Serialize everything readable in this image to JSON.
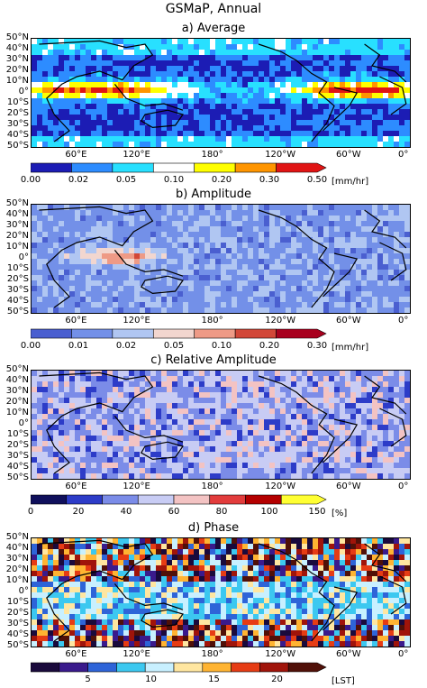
{
  "figure_title": "GSMaP, Annual",
  "lat_labels": [
    "50°N",
    "40°N",
    "30°N",
    "20°N",
    "10°N",
    "0°",
    "10°S",
    "20°S",
    "30°S",
    "40°S",
    "50°S"
  ],
  "lon_labels": [
    "60°E",
    "120°E",
    "180°",
    "120°W",
    "60°W",
    "0°"
  ],
  "panels": [
    {
      "title": "a) Average",
      "unit": "[mm/hr]",
      "ticks": [
        "0.00",
        "0.02",
        "0.05",
        "0.10",
        "0.20",
        "0.30",
        "0.50"
      ],
      "colors": [
        "#1c1cb4",
        "#2d8cff",
        "#28e0ff",
        "#ffffff",
        "#ffff00",
        "#ff9500",
        "#e01414"
      ]
    },
    {
      "title": "b) Amplitude",
      "unit": "[mm/hr]",
      "ticks": [
        "0.00",
        "0.01",
        "0.02",
        "0.05",
        "0.10",
        "0.20",
        "0.30"
      ],
      "colors": [
        "#4a5fd0",
        "#7390e8",
        "#b0c6f2",
        "#f2d6cf",
        "#ee9a86",
        "#d24738",
        "#a8001e"
      ]
    },
    {
      "title": "c) Relative Amplitude",
      "unit": "[%]",
      "ticks": [
        "0",
        "20",
        "40",
        "60",
        "80",
        "100",
        "150"
      ],
      "colors": [
        "#10105c",
        "#2d3cc8",
        "#7b8ce8",
        "#c8ccf4",
        "#f3c3c3",
        "#e23c3c",
        "#b40000",
        "#ffff33"
      ]
    },
    {
      "title": "d) Phase",
      "unit": "[LST]",
      "ticks": [
        "5",
        "10",
        "15",
        "20"
      ],
      "colors": [
        "#1a0a3c",
        "#3a1a8c",
        "#2e64d8",
        "#3cc8f0",
        "#c8f0ff",
        "#ffe6a0",
        "#ffb432",
        "#e63c14",
        "#a0140a",
        "#501008"
      ]
    }
  ]
}
